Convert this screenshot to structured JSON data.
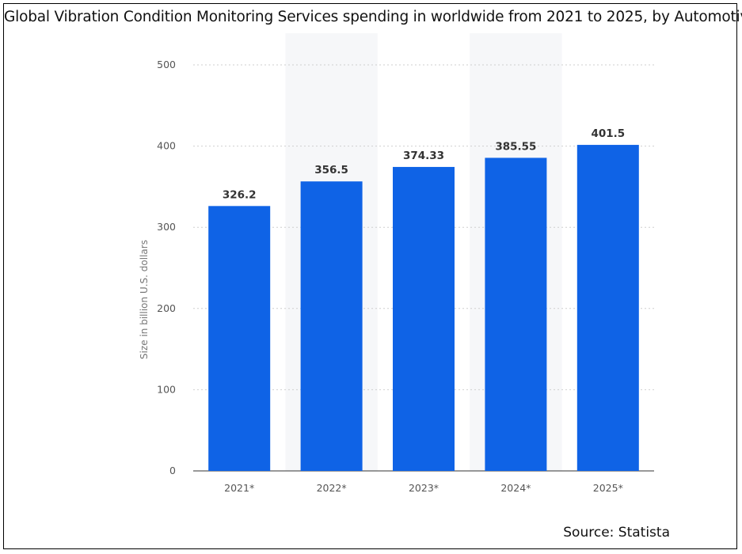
{
  "chart_data": {
    "type": "bar",
    "title": "Global Vibration Condition Monitoring Services spending in worldwide from 2021 to 2025, by Automotive",
    "categories": [
      "2021*",
      "2022*",
      "2023*",
      "2024*",
      "2025*"
    ],
    "values": [
      326.2,
      356.5,
      374.33,
      385.55,
      401.5
    ],
    "value_labels": [
      "326.2",
      "356.5",
      "374.33",
      "385.55",
      "401.5"
    ],
    "yticks": [
      "0",
      "100",
      "200",
      "300",
      "400",
      "500"
    ],
    "ylabel": "Size in billion U.S. dollars",
    "xlabel": "",
    "ylim": [
      0,
      500
    ],
    "grid": true,
    "bar_color": "#0f63e6",
    "alt_band_color": "#f6f7f9"
  },
  "source": "Source: Statista"
}
